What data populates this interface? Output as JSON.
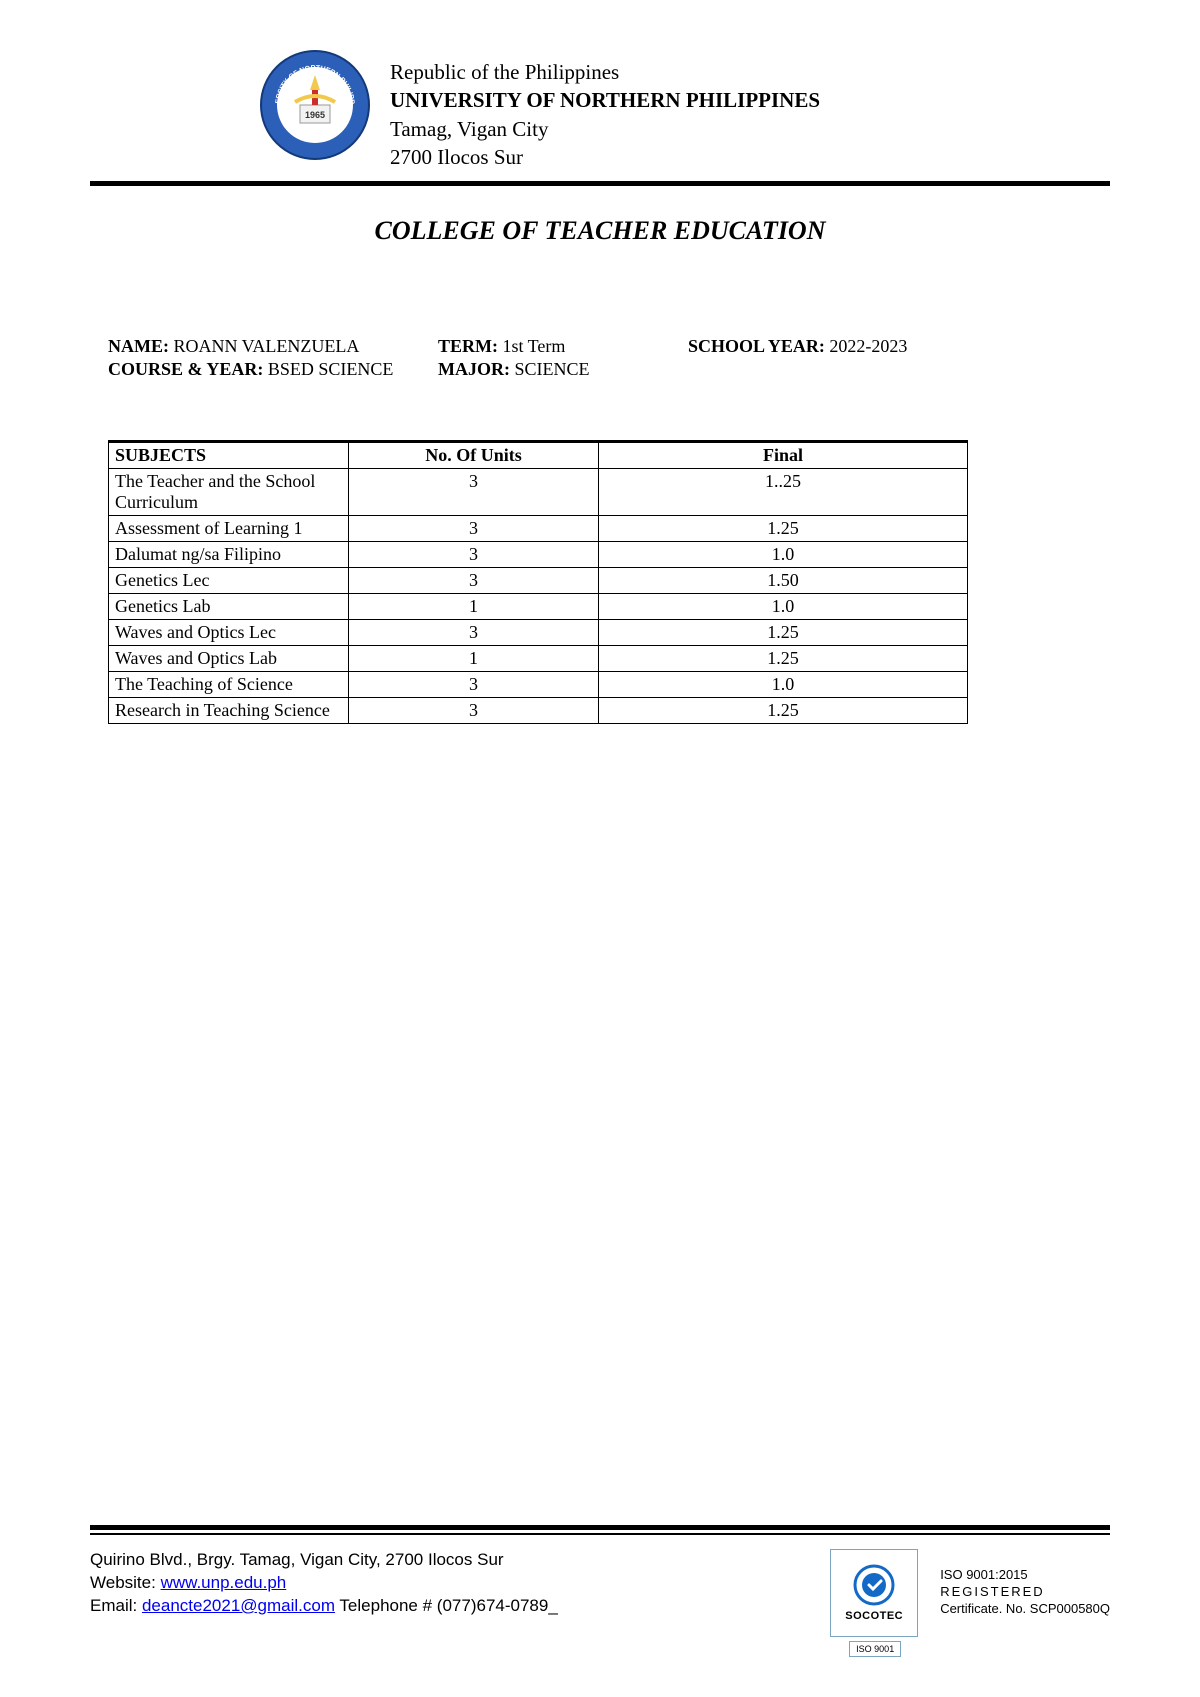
{
  "header": {
    "line1": "Republic of the Philippines",
    "university": "UNIVERSITY OF NORTHERN PHILIPPINES",
    "line3": "Tamag, Vigan City",
    "line4": "2700 Ilocos Sur",
    "logo": {
      "outer_color": "#2b5fb8",
      "inner_color": "#ffffff",
      "accent_color": "#f2c94c",
      "year": "1965",
      "text": "UNIVERSITY OF NORTHERN PHILIPPINES"
    }
  },
  "college_title": "COLLEGE OF TEACHER EDUCATION",
  "info": {
    "name_label": "NAME:",
    "name": "ROANN VALENZUELA",
    "term_label": "TERM:",
    "term": "1st Term",
    "sy_label": "SCHOOL YEAR:",
    "sy": "2022-2023",
    "course_label": "COURSE & YEAR:",
    "course": "BSED SCIENCE",
    "major_label": "MAJOR:",
    "major": "SCIENCE"
  },
  "table": {
    "headers": {
      "subjects": "SUBJECTS",
      "units": "No. Of Units",
      "final": "Final"
    },
    "rows": [
      {
        "subject": "The Teacher and the School Curriculum",
        "units": "3",
        "final": "1..25"
      },
      {
        "subject": "Assessment of Learning 1",
        "units": "3",
        "final": "1.25"
      },
      {
        "subject": "Dalumat ng/sa Filipino",
        "units": "3",
        "final": "1.0"
      },
      {
        "subject": "Genetics Lec",
        "units": "3",
        "final": "1.50"
      },
      {
        "subject": "Genetics Lab",
        "units": "1",
        "final": "1.0"
      },
      {
        "subject": "Waves and Optics Lec",
        "units": "3",
        "final": "1.25"
      },
      {
        "subject": "Waves and Optics Lab",
        "units": "1",
        "final": "1.25"
      },
      {
        "subject": "The Teaching of Science",
        "units": "3",
        "final": "1.0"
      },
      {
        "subject": "Research in Teaching Science",
        "units": "3",
        "final": "1.25"
      }
    ]
  },
  "footer": {
    "address": "Quirino Blvd., Brgy. Tamag, Vigan City, 2700 Ilocos Sur",
    "website_label": "Website: ",
    "website": "www.unp.edu.ph",
    "email_label": "Email: ",
    "email": "deancte2021@gmail.com",
    "phone_label": " Telephone # ",
    "phone": "(077)674-0789_",
    "socotec": {
      "brand": "SOCOTEC",
      "iso": "ISO 9001",
      "circle_color": "#1469c7"
    },
    "cert": {
      "line1": "ISO 9001:2015",
      "line2": "REGISTERED",
      "line3": "Certificate. No. SCP000580Q"
    }
  },
  "styles": {
    "page_bg": "#ffffff",
    "text_color": "#000000",
    "link_color": "#0000ee",
    "rule_color": "#000000",
    "socotec_border": "#7aa6c2",
    "body_font": "Times New Roman",
    "footer_font": "Arial",
    "header_fontsize": 21,
    "title_fontsize": 26,
    "info_fontsize": 18,
    "table_fontsize": 18,
    "footer_fontsize": 17,
    "cert_fontsize": 13,
    "table_border_width": 1,
    "table_header_top_border": 3,
    "hr_thick_width": 5
  }
}
